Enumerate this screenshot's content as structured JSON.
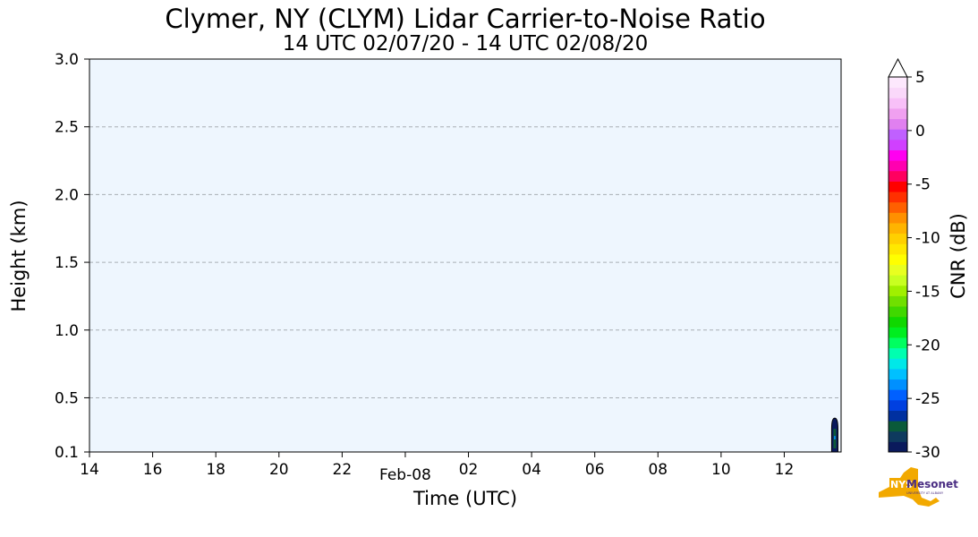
{
  "chart_data": {
    "type": "heatmap",
    "title": "Clymer, NY (CLYM) Lidar Carrier-to-Noise Ratio",
    "subtitle": "14 UTC 02/07/20 - 14 UTC 02/08/20",
    "xlabel": "Time (UTC)",
    "ylabel": "Height (km)",
    "x_ticks": [
      "14",
      "16",
      "18",
      "20",
      "22",
      "Feb-08",
      "02",
      "04",
      "06",
      "08",
      "10",
      "12"
    ],
    "x_range_hours": [
      14,
      37.8
    ],
    "y_ticks": [
      "0.1",
      "0.5",
      "1.0",
      "1.5",
      "2.0",
      "2.5",
      "3.0"
    ],
    "y_tick_values": [
      0.1,
      0.5,
      1.0,
      1.5,
      2.0,
      2.5,
      3.0
    ],
    "ylim": [
      0.1,
      3.0
    ],
    "grid": "horizontal dashed",
    "background_color": "#eef6fe",
    "data_feature": {
      "description": "small region of low CNR values near end of period",
      "time_start_hour": 37.5,
      "time_end_hour": 37.7,
      "height_max_km": 0.35,
      "cnr_db_range": [
        -30,
        -24
      ]
    },
    "colorbar": {
      "label": "CNR (dB)",
      "ticks": [
        "5",
        "0",
        "-5",
        "-10",
        "-15",
        "-20",
        "-25",
        "-30"
      ],
      "tick_values": [
        5,
        0,
        -5,
        -10,
        -15,
        -20,
        -25,
        -30
      ],
      "vmin": -30,
      "vmax": 5,
      "extend": "max",
      "colors": [
        "#0a1a5c",
        "#0e3a5e",
        "#0a5a3a",
        "#0030a0",
        "#0040e0",
        "#0060ff",
        "#0090ff",
        "#00c0ff",
        "#00e8e8",
        "#00ffb0",
        "#00ff60",
        "#00ee20",
        "#10d800",
        "#40d800",
        "#70e000",
        "#a0f000",
        "#c8ff20",
        "#e8ff20",
        "#ffff00",
        "#ffe800",
        "#ffd000",
        "#ffb400",
        "#ff9000",
        "#ff6000",
        "#ff3000",
        "#ff0000",
        "#ff0060",
        "#ff00b0",
        "#ff00f0",
        "#d040ff",
        "#c060ff",
        "#e080f0",
        "#f0a0f0",
        "#f8c0f8",
        "#fad8fa",
        "#fde8fd"
      ]
    }
  },
  "logo": {
    "text": "NYS",
    "name": "Mesonet",
    "subtext": "UNIVERSITY AT ALBANY"
  }
}
